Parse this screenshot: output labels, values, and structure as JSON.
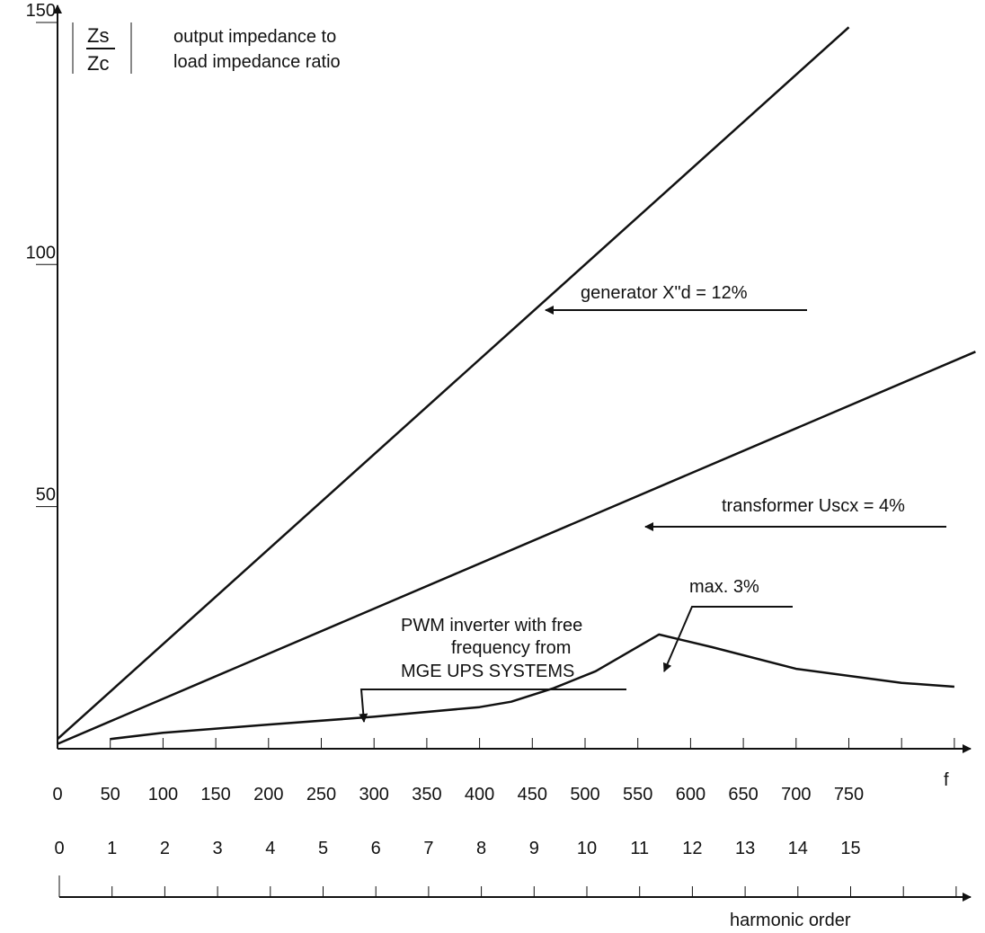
{
  "chart_data": {
    "type": "line",
    "y_label_numerator": "Zs",
    "y_label_denominator": "Zc",
    "y_label_description": [
      "output impedance to",
      "load impedance ratio"
    ],
    "y_ticks": [
      "150",
      "100",
      "50"
    ],
    "y_tick_values": [
      150,
      100,
      50
    ],
    "ylim": [
      0,
      150
    ],
    "x_axis_label": "f",
    "x_ticks": [
      "0",
      "50",
      "100",
      "150",
      "200",
      "250",
      "300",
      "350",
      "400",
      "450",
      "500",
      "550",
      "600",
      "650",
      "700",
      "750"
    ],
    "x_tick_values": [
      0,
      50,
      100,
      150,
      200,
      250,
      300,
      350,
      400,
      450,
      500,
      550,
      600,
      650,
      700,
      750
    ],
    "harmonic_axis_label": "harmonic order",
    "harmonic_ticks": [
      "0",
      "1",
      "2",
      "3",
      "4",
      "5",
      "6",
      "7",
      "8",
      "9",
      "10",
      "11",
      "12",
      "13",
      "14",
      "15"
    ],
    "harmonic_tick_f": [
      0,
      50,
      100,
      150,
      200,
      250,
      300,
      350,
      400,
      450,
      500,
      550,
      600,
      650,
      700,
      750
    ],
    "grid": false,
    "series": [
      {
        "name": "generator X\"d = 12%",
        "x": [
          0,
          750
        ],
        "y": [
          2,
          149
        ]
      },
      {
        "name": "transformer Uscx = 4%",
        "x": [
          0,
          870
        ],
        "y": [
          1,
          82
        ]
      },
      {
        "name": "PWM inverter",
        "x": [
          50,
          100,
          200,
          300,
          400,
          430,
          470,
          510,
          570,
          620,
          700,
          800,
          850
        ],
        "y": [
          2,
          3.3,
          5,
          6.6,
          8.6,
          9.7,
          12.5,
          16,
          23.6,
          21,
          16.5,
          13.6,
          12.8
        ]
      }
    ],
    "annotations": {
      "generator": "generator X\"d = 12%",
      "transformer": "transformer Uscx = 4%",
      "max": "max. 3%",
      "pwm": [
        "PWM inverter with free",
        "frequency from",
        "MGE UPS SYSTEMS"
      ]
    }
  }
}
